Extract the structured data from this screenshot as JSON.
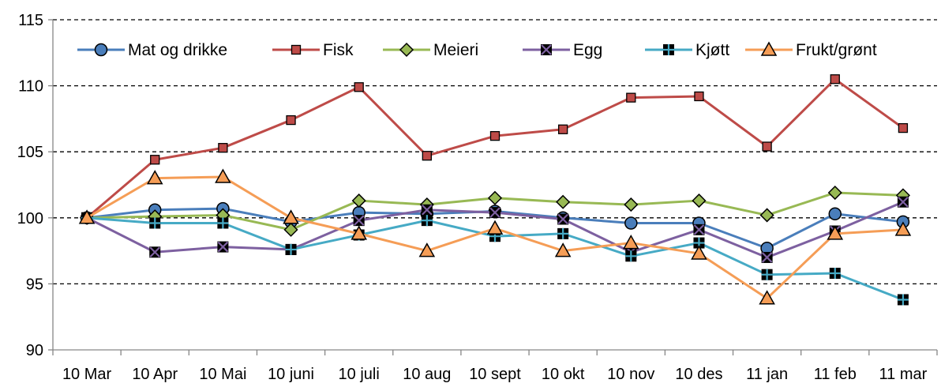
{
  "chart_data": {
    "type": "line",
    "title": "",
    "xlabel": "",
    "ylabel": "",
    "categories": [
      "10 Mar",
      "10 Apr",
      "10 Mai",
      "10 juni",
      "10 juli",
      "10 aug",
      "10 sept",
      "10 okt",
      "10 nov",
      "10 des",
      "11 jan",
      "11 feb",
      "11 mar"
    ],
    "ylim": [
      90,
      115
    ],
    "yticks": [
      90,
      95,
      100,
      105,
      110,
      115
    ],
    "grid": "horizontal-dashed",
    "legend_position": "top",
    "series": [
      {
        "name": "Mat og drikke",
        "color": "#4a7ebb",
        "marker": "circle",
        "values": [
          100,
          100.6,
          100.7,
          99.7,
          100.4,
          100.3,
          100.5,
          100.0,
          99.6,
          99.6,
          97.7,
          100.3,
          99.7
        ]
      },
      {
        "name": "Fisk",
        "color": "#be4b48",
        "marker": "square",
        "values": [
          100,
          104.4,
          105.3,
          107.4,
          109.9,
          104.7,
          106.2,
          106.7,
          109.1,
          109.2,
          105.4,
          110.5,
          106.8
        ]
      },
      {
        "name": "Meieri",
        "color": "#98b954",
        "marker": "diamond",
        "values": [
          100,
          100.1,
          100.2,
          99.1,
          101.3,
          101.0,
          101.5,
          101.2,
          101.0,
          101.3,
          100.2,
          101.9,
          101.7
        ]
      },
      {
        "name": "Egg",
        "color": "#7d60a0",
        "marker": "x",
        "values": [
          100,
          97.4,
          97.8,
          97.6,
          99.8,
          100.6,
          100.4,
          99.9,
          97.4,
          99.1,
          97.0,
          99.0,
          101.2
        ]
      },
      {
        "name": "Kjøtt",
        "color": "#46aac5",
        "marker": "plus",
        "values": [
          100,
          99.6,
          99.6,
          97.6,
          98.7,
          99.8,
          98.6,
          98.8,
          97.1,
          98.1,
          95.7,
          95.8,
          93.8
        ]
      },
      {
        "name": "Frukt/grønt",
        "color": "#f59d56",
        "marker": "triangle",
        "values": [
          100,
          103.0,
          103.1,
          100.0,
          98.8,
          97.5,
          99.2,
          97.5,
          98.1,
          97.3,
          93.9,
          98.8,
          99.1
        ]
      }
    ]
  }
}
